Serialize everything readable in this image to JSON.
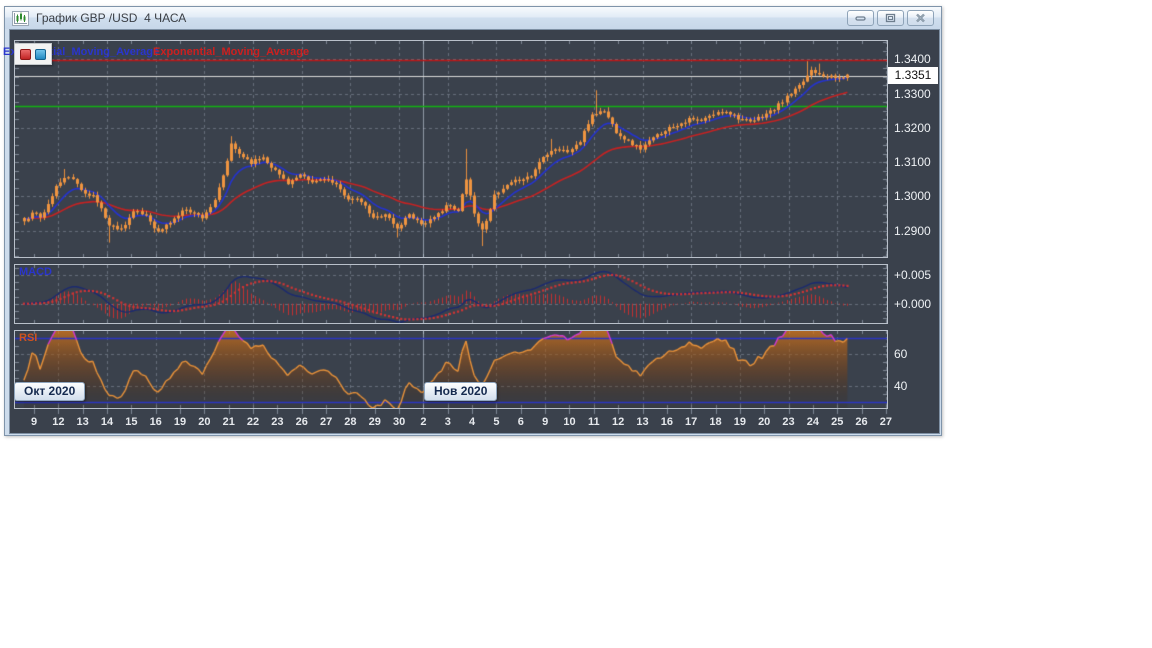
{
  "window": {
    "title": "График GBP /USD  4 ЧАСА",
    "controls": [
      "minimize",
      "maximize",
      "close"
    ]
  },
  "legend": {
    "ema_blue": "Exponential_Moving_Average",
    "ema_red": "Exponential_Moving_Average"
  },
  "indicators": {
    "macd_label": "MACD",
    "rsi_label": "RSI"
  },
  "months": {
    "oct": "Окт 2020",
    "nov": "Нов 2020"
  },
  "chart_data": {
    "type": "candlestick",
    "title": "График GBP /USD 4 ЧАСА",
    "symbol": "GBP/USD",
    "timeframe": "4 часа",
    "x_labels": [
      "9",
      "12",
      "13",
      "14",
      "15",
      "16",
      "19",
      "20",
      "21",
      "22",
      "23",
      "26",
      "27",
      "28",
      "29",
      "30",
      "2",
      "3",
      "4",
      "5",
      "6",
      "9",
      "10",
      "11",
      "12",
      "13",
      "16",
      "17",
      "18",
      "19",
      "20",
      "23",
      "24",
      "25",
      "26",
      "27"
    ],
    "month_boundary_day": 16,
    "candles_per_day": 6,
    "candle_count": 204,
    "main_ylim": [
      1.2823,
      1.3454
    ],
    "macd_ylim": [
      -0.0034,
      0.0068
    ],
    "rsi_ylim": [
      26,
      74.5
    ],
    "price_ticks": [
      {
        "label": "1.3400",
        "value": 1.34
      },
      {
        "label": "1.3300",
        "value": 1.33
      },
      {
        "label": "1.3200",
        "value": 1.32
      },
      {
        "label": "1.3100",
        "value": 1.31
      },
      {
        "label": "1.3000",
        "value": 1.3
      },
      {
        "label": "1.2900",
        "value": 1.29
      }
    ],
    "macd_ticks": [
      {
        "label": "+0.005",
        "value": 0.005
      },
      {
        "label": "+0.000",
        "value": 0.0
      }
    ],
    "rsi_ticks": [
      {
        "label": "60",
        "value": 60
      },
      {
        "label": "40",
        "value": 40
      }
    ],
    "hlines": [
      {
        "value": 1.3399,
        "color": "#c01515",
        "width": 1.5
      },
      {
        "value": 1.3351,
        "color": "#d9d9d9",
        "width": 1
      },
      {
        "value": 1.3265,
        "color": "#12b212",
        "width": 1.5
      }
    ],
    "rsi_levels": [
      {
        "value": 70
      },
      {
        "value": 30
      }
    ],
    "current_price": {
      "label": "1.3351",
      "value": 1.3351
    },
    "ema_fast": 9,
    "ema_slow": 30,
    "macd_params": [
      12,
      26,
      9
    ],
    "rsi_period": 14,
    "close_anchors": [
      [
        0,
        1.293
      ],
      [
        2,
        1.295
      ],
      [
        4,
        1.294
      ],
      [
        6,
        1.2975
      ],
      [
        8,
        1.303
      ],
      [
        11,
        1.306
      ],
      [
        14,
        1.302
      ],
      [
        17,
        1.3
      ],
      [
        19,
        1.2965
      ],
      [
        21,
        1.2915
      ],
      [
        24,
        1.2905
      ],
      [
        27,
        1.2955
      ],
      [
        30,
        1.2945
      ],
      [
        33,
        1.2895
      ],
      [
        35,
        1.2915
      ],
      [
        38,
        1.2945
      ],
      [
        40,
        1.2965
      ],
      [
        42,
        1.295
      ],
      [
        44,
        1.294
      ],
      [
        47,
        1.2985
      ],
      [
        49,
        1.306
      ],
      [
        51,
        1.315
      ],
      [
        53,
        1.3125
      ],
      [
        56,
        1.31
      ],
      [
        59,
        1.3115
      ],
      [
        62,
        1.3075
      ],
      [
        65,
        1.304
      ],
      [
        68,
        1.306
      ],
      [
        71,
        1.304
      ],
      [
        74,
        1.3055
      ],
      [
        77,
        1.303
      ],
      [
        80,
        1.2995
      ],
      [
        83,
        1.2985
      ],
      [
        86,
        1.2935
      ],
      [
        89,
        1.295
      ],
      [
        92,
        1.2905
      ],
      [
        95,
        1.295
      ],
      [
        98,
        1.292
      ],
      [
        101,
        1.2935
      ],
      [
        104,
        1.2975
      ],
      [
        107,
        1.2955
      ],
      [
        109,
        1.3055
      ],
      [
        111,
        1.295
      ],
      [
        113,
        1.29
      ],
      [
        116,
        1.3
      ],
      [
        119,
        1.303
      ],
      [
        122,
        1.305
      ],
      [
        125,
        1.306
      ],
      [
        128,
        1.312
      ],
      [
        131,
        1.314
      ],
      [
        134,
        1.313
      ],
      [
        137,
        1.316
      ],
      [
        140,
        1.324
      ],
      [
        143,
        1.325
      ],
      [
        146,
        1.319
      ],
      [
        149,
        1.316
      ],
      [
        152,
        1.314
      ],
      [
        155,
        1.317
      ],
      [
        158,
        1.3195
      ],
      [
        161,
        1.321
      ],
      [
        164,
        1.3225
      ],
      [
        167,
        1.322
      ],
      [
        170,
        1.324
      ],
      [
        173,
        1.325
      ],
      [
        176,
        1.323
      ],
      [
        179,
        1.3215
      ],
      [
        182,
        1.3235
      ],
      [
        185,
        1.3255
      ],
      [
        188,
        1.329
      ],
      [
        191,
        1.332
      ],
      [
        194,
        1.337
      ],
      [
        197,
        1.3355
      ],
      [
        200,
        1.3345
      ],
      [
        203,
        1.3351
      ]
    ],
    "wick_overrides": {
      "10": {
        "h": 1.308
      },
      "21": {
        "l": 1.2865
      },
      "51": {
        "h": 1.3176
      },
      "92": {
        "l": 1.288
      },
      "109": {
        "h": 1.3139
      },
      "113": {
        "l": 1.2855
      },
      "130": {
        "h": 1.3168
      },
      "141": {
        "h": 1.331
      },
      "193": {
        "h": 1.3395
      },
      "196": {
        "h": 1.3388
      }
    },
    "colors": {
      "bg": "#3a414c",
      "grid": "#666f7b",
      "tick": "#7e8794",
      "candle": "#ef9440",
      "wick": "#e78f3e",
      "ema_fast": "#2433cf",
      "ema_slow": "#c62222",
      "macd_line": "#1b2a70",
      "macd_signal": "#d03434",
      "macd_hist": "#c43030",
      "rsi_line": "#e8923a",
      "rsi_over": "#d23ad2",
      "rsi_level": "#2b35c4",
      "month_line": "rgba(215,225,240,0.55)"
    }
  }
}
